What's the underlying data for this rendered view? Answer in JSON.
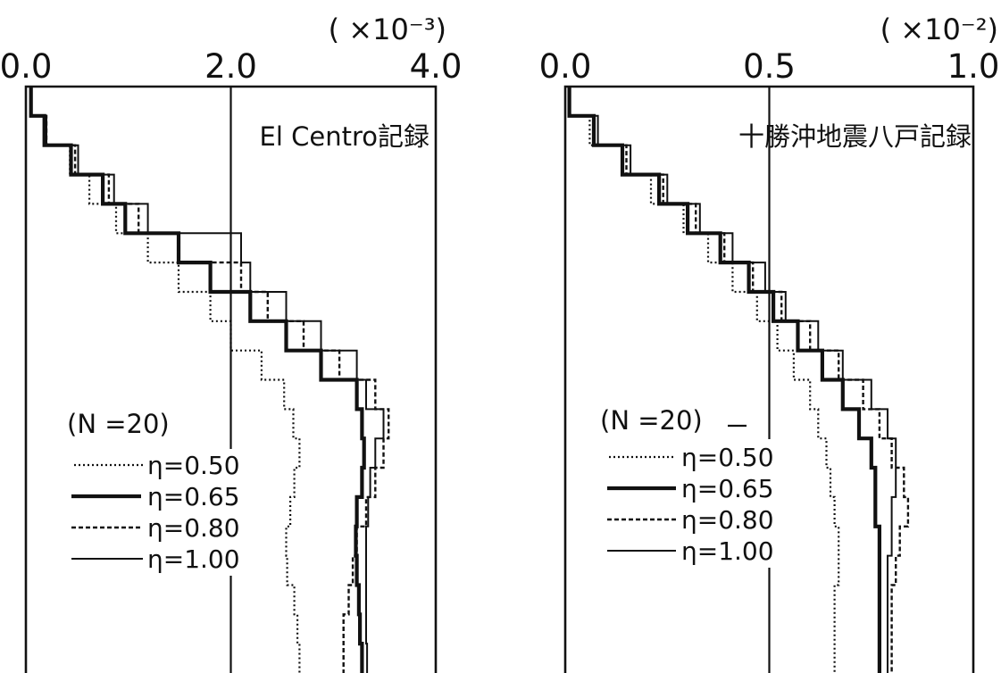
{
  "chart_data": [
    {
      "type": "line",
      "drawstyle": "steps",
      "x_axis_position": "top",
      "x_multiplier": "( ×10⁻³)",
      "xlim": [
        0.0,
        4.0
      ],
      "xticks": [
        0.0,
        2.0,
        4.0
      ],
      "xtick_labels": [
        "0.0",
        "2.0",
        "4.0"
      ],
      "gridline_at": 2.0,
      "annotation": "El Centro記録",
      "legend_title": "(N =20)",
      "legend_position": "lower-left",
      "series": [
        {
          "name": "η=0.50",
          "line_style": "dotted",
          "values": [
            0.05,
            0.18,
            0.43,
            0.62,
            0.88,
            1.19,
            1.49,
            1.8,
            2.0,
            2.3,
            2.52,
            2.61,
            2.67,
            2.62,
            2.58,
            2.54,
            2.55,
            2.62,
            2.65,
            2.67
          ]
        },
        {
          "name": "η=0.65",
          "line_style": "thick",
          "values": [
            0.05,
            0.18,
            0.44,
            0.75,
            0.97,
            1.49,
            1.8,
            2.19,
            2.54,
            2.88,
            3.23,
            3.28,
            3.3,
            3.28,
            3.23,
            3.22,
            3.23,
            3.25,
            3.26,
            3.28
          ]
        },
        {
          "name": "η=0.80",
          "line_style": "dashed",
          "values": [
            0.05,
            0.2,
            0.48,
            0.81,
            1.1,
            1.49,
            2.1,
            2.36,
            2.71,
            3.06,
            3.41,
            3.54,
            3.49,
            3.41,
            3.32,
            3.23,
            3.19,
            3.15,
            3.1,
            3.1
          ]
        },
        {
          "name": "η=1.00",
          "line_style": "thin",
          "values": [
            0.05,
            0.2,
            0.51,
            0.86,
            1.19,
            2.1,
            2.19,
            2.54,
            2.88,
            3.23,
            3.32,
            3.49,
            3.41,
            3.36,
            3.34,
            3.32,
            3.32,
            3.32,
            3.32,
            3.33
          ]
        }
      ]
    },
    {
      "type": "line",
      "drawstyle": "steps",
      "x_axis_position": "top",
      "x_multiplier": "( ×10⁻²)",
      "xlim": [
        0.0,
        1.0
      ],
      "xticks": [
        0.0,
        0.5,
        1.0
      ],
      "xtick_labels": [
        "0.0",
        "0.5",
        "1.0"
      ],
      "gridline_at": 0.5,
      "annotation": "十勝沖地震八戸記録",
      "legend_title": "(N =20)",
      "legend_position": "lower-left",
      "series": [
        {
          "name": "η=0.50",
          "line_style": "dotted",
          "values": [
            0.01,
            0.06,
            0.14,
            0.21,
            0.29,
            0.35,
            0.41,
            0.47,
            0.52,
            0.56,
            0.6,
            0.62,
            0.64,
            0.65,
            0.66,
            0.67,
            0.67,
            0.66,
            0.66,
            0.66
          ]
        },
        {
          "name": "η=0.65",
          "line_style": "thick",
          "values": [
            0.01,
            0.07,
            0.14,
            0.23,
            0.3,
            0.38,
            0.45,
            0.51,
            0.57,
            0.63,
            0.68,
            0.72,
            0.75,
            0.76,
            0.76,
            0.77,
            0.77,
            0.77,
            0.77,
            0.77
          ]
        },
        {
          "name": "η=0.80",
          "line_style": "dashed",
          "values": [
            0.01,
            0.07,
            0.15,
            0.24,
            0.32,
            0.39,
            0.46,
            0.53,
            0.6,
            0.67,
            0.73,
            0.77,
            0.8,
            0.83,
            0.84,
            0.82,
            0.81,
            0.8,
            0.8,
            0.8
          ]
        },
        {
          "name": "η=1.00",
          "line_style": "thin",
          "values": [
            0.01,
            0.08,
            0.16,
            0.25,
            0.33,
            0.41,
            0.49,
            0.54,
            0.62,
            0.68,
            0.75,
            0.79,
            0.81,
            0.81,
            0.8,
            0.8,
            0.79,
            0.79,
            0.79,
            0.79
          ]
        }
      ]
    }
  ]
}
